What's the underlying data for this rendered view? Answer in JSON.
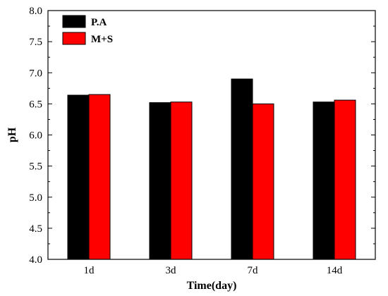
{
  "chart_data": {
    "type": "bar",
    "title": "",
    "xlabel": "Time(day)",
    "ylabel": "pH",
    "categories": [
      "1d",
      "3d",
      "7d",
      "14d"
    ],
    "series": [
      {
        "name": "P.A",
        "color": "#000000",
        "values": [
          6.64,
          6.52,
          6.9,
          6.53
        ]
      },
      {
        "name": "M+S",
        "color": "#ff0000",
        "values": [
          6.65,
          6.53,
          6.5,
          6.56
        ]
      }
    ],
    "ylim": [
      4.0,
      8.0
    ],
    "yticks": [
      "4.0",
      "4.5",
      "5.0",
      "5.5",
      "6.0",
      "6.5",
      "7.0",
      "7.5",
      "8.0"
    ],
    "grid": false,
    "legend_position": "top-left"
  }
}
